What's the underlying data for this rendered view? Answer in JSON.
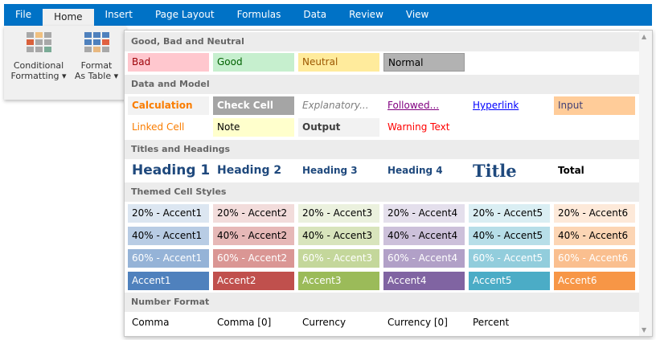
{
  "tabs": [
    "File",
    "Home",
    "Insert",
    "Page Layout",
    "Formulas",
    "Data",
    "Review",
    "View"
  ],
  "active_tab": "Home",
  "ribbon": {
    "conditional": [
      "Conditional",
      "Formatting ▾"
    ],
    "format_table": [
      "Format",
      "As Table ▾"
    ]
  },
  "sections": [
    {
      "title": "Good, Bad and Neutral",
      "rows": [
        [
          {
            "label": "Bad",
            "bg": "#FFC7CE",
            "color": "#9C0006"
          },
          {
            "label": "Good",
            "bg": "#C6EFCE",
            "color": "#006100"
          },
          {
            "label": "Neutral",
            "bg": "#FFEB9C",
            "color": "#9C5700"
          },
          {
            "label": "Normal",
            "bg": "#B2B2B2",
            "color": "#000000",
            "border": "#9a9a9a"
          }
        ]
      ]
    },
    {
      "title": "Data and Model",
      "rows": [
        [
          {
            "label": "Calculation",
            "bg": "#F2F2F2",
            "color": "#FA7D00",
            "bold": true
          },
          {
            "label": "Check Cell",
            "bg": "#A5A5A5",
            "color": "#FFFFFF",
            "bold": true
          },
          {
            "label": "Explanatory...",
            "bg": "#FFFFFF",
            "color": "#7F7F7F",
            "italic": true
          },
          {
            "label": "Followed...",
            "bg": "#FFFFFF",
            "color": "#800080",
            "underline": true
          },
          {
            "label": "Hyperlink",
            "bg": "#FFFFFF",
            "color": "#0000FF",
            "underline": true
          },
          {
            "label": "Input",
            "bg": "#FFCC99",
            "color": "#3F3F76"
          }
        ],
        [
          {
            "label": "Linked Cell",
            "bg": "#FFFFFF",
            "color": "#FA7D00"
          },
          {
            "label": "Note",
            "bg": "#FFFFCC",
            "color": "#000000"
          },
          {
            "label": "Output",
            "bg": "#F2F2F2",
            "color": "#3F3F3F",
            "bold": true
          },
          {
            "label": "Warning Text",
            "bg": "#FFFFFF",
            "color": "#FF0000"
          }
        ]
      ]
    },
    {
      "title": "Titles and Headings",
      "rows": [
        [
          {
            "label": "Heading 1",
            "color": "#1F497D",
            "bold": true,
            "size": 17
          },
          {
            "label": "Heading 2",
            "color": "#1F497D",
            "bold": true,
            "size": 14
          },
          {
            "label": "Heading 3",
            "color": "#1F497D",
            "bold": true,
            "size": 12
          },
          {
            "label": "Heading 4",
            "color": "#1F497D",
            "bold": true,
            "size": 12
          },
          {
            "label": "Title",
            "color": "#1F497D",
            "bold": true,
            "size": 21,
            "serif": true
          },
          {
            "label": "Total",
            "color": "#000000",
            "bold": true,
            "size": 12
          }
        ]
      ]
    },
    {
      "title": "Themed Cell Styles",
      "rows": [
        [
          {
            "label": "20% - Accent1",
            "bg": "#DCE6F1"
          },
          {
            "label": "20% - Accent2",
            "bg": "#F2DCDB"
          },
          {
            "label": "20% - Accent3",
            "bg": "#EBF1DE"
          },
          {
            "label": "20% - Accent4",
            "bg": "#E4DFEC"
          },
          {
            "label": "20% - Accent5",
            "bg": "#DAEEF3"
          },
          {
            "label": "20% - Accent6",
            "bg": "#FDE9D9"
          }
        ],
        [
          {
            "label": "40% - Accent1",
            "bg": "#B8CCE4"
          },
          {
            "label": "40% - Accent2",
            "bg": "#E6B8B7"
          },
          {
            "label": "40% - Accent3",
            "bg": "#D8E4BC"
          },
          {
            "label": "40% - Accent4",
            "bg": "#CCC0DA"
          },
          {
            "label": "40% - Accent5",
            "bg": "#B7DEE8"
          },
          {
            "label": "40% - Accent6",
            "bg": "#FCD5B4"
          }
        ],
        [
          {
            "label": "60% - Accent1",
            "bg": "#95B3D7",
            "color": "#FFFFFF"
          },
          {
            "label": "60% - Accent2",
            "bg": "#DA9694",
            "color": "#FFFFFF"
          },
          {
            "label": "60% - Accent3",
            "bg": "#C4D79B",
            "color": "#FFFFFF"
          },
          {
            "label": "60% - Accent4",
            "bg": "#B1A0C7",
            "color": "#FFFFFF"
          },
          {
            "label": "60% - Accent5",
            "bg": "#92CDDC",
            "color": "#FFFFFF"
          },
          {
            "label": "60% - Accent6",
            "bg": "#FABF8F",
            "color": "#FFFFFF"
          }
        ],
        [
          {
            "label": "Accent1",
            "bg": "#4F81BD",
            "color": "#FFFFFF"
          },
          {
            "label": "Accent2",
            "bg": "#C0504D",
            "color": "#FFFFFF"
          },
          {
            "label": "Accent3",
            "bg": "#9BBB59",
            "color": "#FFFFFF"
          },
          {
            "label": "Accent4",
            "bg": "#8064A2",
            "color": "#FFFFFF"
          },
          {
            "label": "Accent5",
            "bg": "#4BACC6",
            "color": "#FFFFFF"
          },
          {
            "label": "Accent6",
            "bg": "#F79646",
            "color": "#FFFFFF"
          }
        ]
      ]
    },
    {
      "title": "Number Format",
      "rows": [
        [
          {
            "label": "Comma"
          },
          {
            "label": "Comma [0]"
          },
          {
            "label": "Currency"
          },
          {
            "label": "Currency [0]"
          },
          {
            "label": "Percent"
          }
        ]
      ]
    }
  ]
}
